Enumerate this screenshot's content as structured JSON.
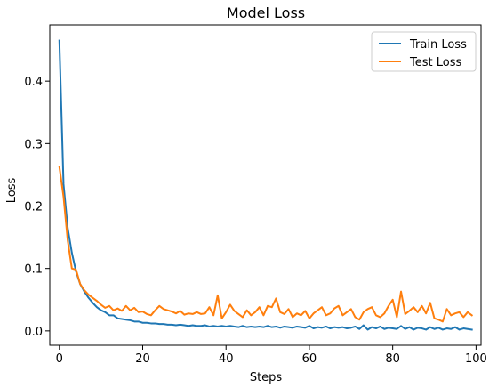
{
  "chart_data": {
    "type": "line",
    "title": "Model Loss",
    "xlabel": "Steps",
    "ylabel": "Loss",
    "xlim": [
      -2.3,
      101.2
    ],
    "ylim": [
      -0.023,
      0.49
    ],
    "xticks": [
      0,
      20,
      40,
      60,
      80,
      100
    ],
    "yticks": [
      0.0,
      0.1,
      0.2,
      0.3,
      0.4
    ],
    "ytick_labels": [
      "0.0",
      "0.1",
      "0.2",
      "0.3",
      "0.4"
    ],
    "grid": false,
    "legend": "top-right",
    "series": [
      {
        "name": "Train Loss",
        "color": "#1f77b4",
        "x": [
          0,
          1,
          2,
          3,
          4,
          5,
          6,
          7,
          8,
          9,
          10,
          11,
          12,
          13,
          14,
          15,
          16,
          17,
          18,
          19,
          20,
          21,
          22,
          23,
          24,
          25,
          26,
          27,
          28,
          29,
          30,
          31,
          32,
          33,
          34,
          35,
          36,
          37,
          38,
          39,
          40,
          41,
          42,
          43,
          44,
          45,
          46,
          47,
          48,
          49,
          50,
          51,
          52,
          53,
          54,
          55,
          56,
          57,
          58,
          59,
          60,
          61,
          62,
          63,
          64,
          65,
          66,
          67,
          68,
          69,
          70,
          71,
          72,
          73,
          74,
          75,
          76,
          77,
          78,
          79,
          80,
          81,
          82,
          83,
          84,
          85,
          86,
          87,
          88,
          89,
          90,
          91,
          92,
          93,
          94,
          95,
          96,
          97,
          98,
          99
        ],
        "values": [
          0.465,
          0.235,
          0.165,
          0.125,
          0.095,
          0.075,
          0.063,
          0.053,
          0.045,
          0.038,
          0.033,
          0.03,
          0.025,
          0.025,
          0.02,
          0.019,
          0.018,
          0.017,
          0.015,
          0.015,
          0.013,
          0.013,
          0.012,
          0.012,
          0.011,
          0.011,
          0.01,
          0.01,
          0.009,
          0.01,
          0.009,
          0.008,
          0.009,
          0.008,
          0.008,
          0.009,
          0.007,
          0.008,
          0.007,
          0.008,
          0.007,
          0.008,
          0.007,
          0.006,
          0.008,
          0.006,
          0.007,
          0.006,
          0.007,
          0.006,
          0.008,
          0.006,
          0.007,
          0.005,
          0.007,
          0.006,
          0.005,
          0.007,
          0.006,
          0.005,
          0.008,
          0.004,
          0.006,
          0.005,
          0.007,
          0.004,
          0.006,
          0.005,
          0.006,
          0.004,
          0.005,
          0.007,
          0.003,
          0.009,
          0.002,
          0.006,
          0.004,
          0.007,
          0.003,
          0.005,
          0.004,
          0.003,
          0.008,
          0.003,
          0.006,
          0.002,
          0.005,
          0.004,
          0.002,
          0.006,
          0.003,
          0.005,
          0.002,
          0.004,
          0.003,
          0.006,
          0.002,
          0.004,
          0.003,
          0.002
        ]
      },
      {
        "name": "Test Loss",
        "color": "#ff7f0e",
        "x": [
          0,
          1,
          2,
          3,
          4,
          5,
          6,
          7,
          8,
          9,
          10,
          11,
          12,
          13,
          14,
          15,
          16,
          17,
          18,
          19,
          20,
          21,
          22,
          23,
          24,
          25,
          26,
          27,
          28,
          29,
          30,
          31,
          32,
          33,
          34,
          35,
          36,
          37,
          38,
          39,
          40,
          41,
          42,
          43,
          44,
          45,
          46,
          47,
          48,
          49,
          50,
          51,
          52,
          53,
          54,
          55,
          56,
          57,
          58,
          59,
          60,
          61,
          62,
          63,
          64,
          65,
          66,
          67,
          68,
          69,
          70,
          71,
          72,
          73,
          74,
          75,
          76,
          77,
          78,
          79,
          80,
          81,
          82,
          83,
          84,
          85,
          86,
          87,
          88,
          89,
          90,
          91,
          92,
          93,
          94,
          95,
          96,
          97,
          98,
          99
        ],
        "values": [
          0.263,
          0.215,
          0.145,
          0.1,
          0.098,
          0.075,
          0.065,
          0.058,
          0.053,
          0.048,
          0.042,
          0.037,
          0.04,
          0.033,
          0.036,
          0.032,
          0.04,
          0.033,
          0.037,
          0.03,
          0.031,
          0.027,
          0.025,
          0.033,
          0.04,
          0.035,
          0.033,
          0.031,
          0.028,
          0.032,
          0.026,
          0.028,
          0.027,
          0.03,
          0.027,
          0.028,
          0.038,
          0.025,
          0.057,
          0.02,
          0.03,
          0.042,
          0.032,
          0.027,
          0.022,
          0.033,
          0.025,
          0.03,
          0.038,
          0.025,
          0.04,
          0.038,
          0.052,
          0.03,
          0.027,
          0.035,
          0.022,
          0.028,
          0.025,
          0.032,
          0.02,
          0.028,
          0.033,
          0.038,
          0.025,
          0.028,
          0.036,
          0.04,
          0.025,
          0.03,
          0.035,
          0.022,
          0.018,
          0.03,
          0.035,
          0.038,
          0.025,
          0.022,
          0.028,
          0.04,
          0.05,
          0.022,
          0.063,
          0.027,
          0.032,
          0.038,
          0.03,
          0.04,
          0.028,
          0.045,
          0.02,
          0.018,
          0.015,
          0.035,
          0.025,
          0.028,
          0.03,
          0.022,
          0.03,
          0.025
        ]
      }
    ]
  }
}
